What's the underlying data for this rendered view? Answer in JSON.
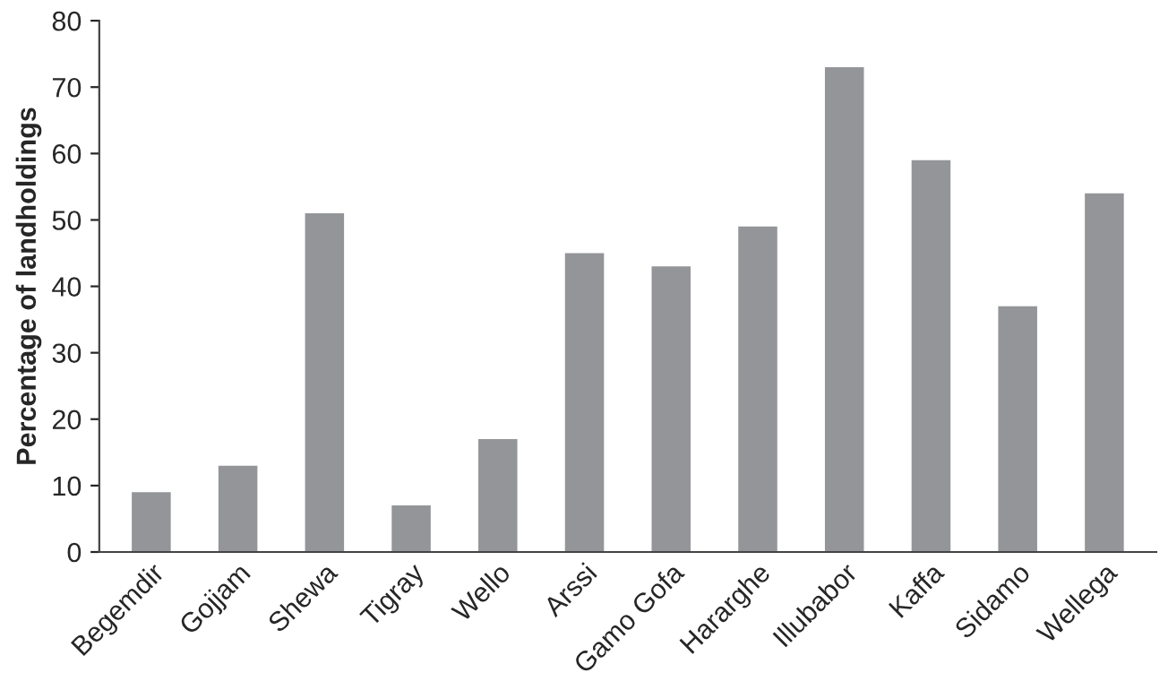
{
  "chart_data": {
    "type": "bar",
    "ylabel": "Percentage of landholdings",
    "categories": [
      "Begemdir",
      "Gojjam",
      "Shewa",
      "Tigray",
      "Wello",
      "Arssi",
      "Gamo Gofa",
      "Hararghe",
      "Illubabor",
      "Kaffa",
      "Sidamo",
      "Wellega"
    ],
    "values": [
      9,
      13,
      51,
      7,
      17,
      45,
      43,
      49,
      73,
      59,
      37,
      54
    ],
    "color": "#939598",
    "ylim": [
      0,
      80
    ],
    "yticks": [
      0,
      10,
      20,
      30,
      40,
      50,
      60,
      70,
      80
    ],
    "grid": false
  }
}
